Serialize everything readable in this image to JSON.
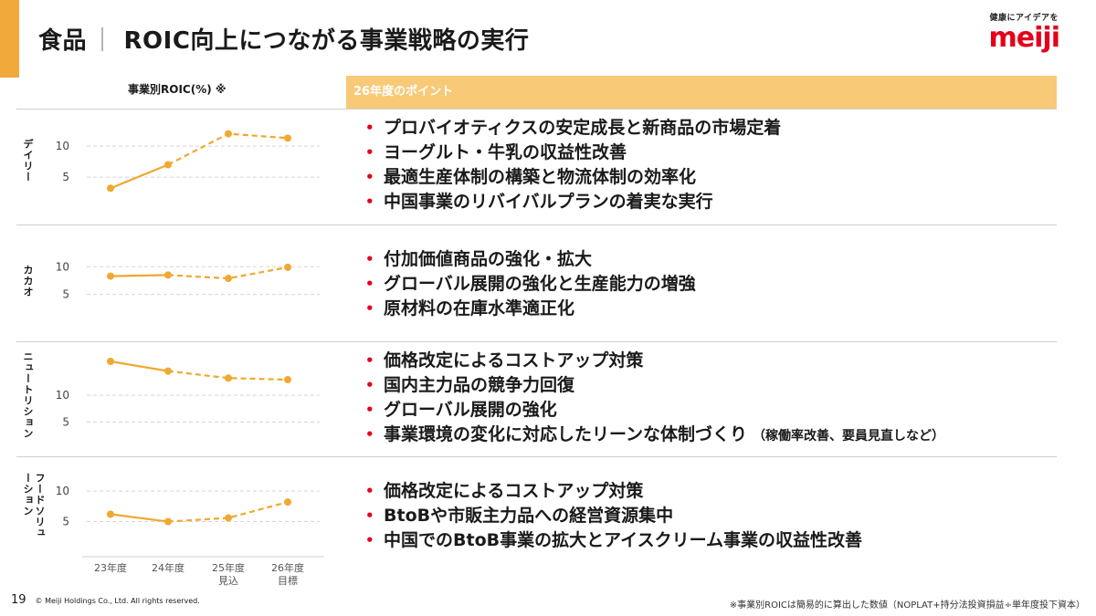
{
  "page": {
    "title_segment": "食品",
    "title_separator": "｜",
    "title_main": "ROIC向上につながる事業戦略の実行",
    "brand_tagline": "健康にアイデアを",
    "brand_logo": "meiji",
    "left_header": "事業別ROIC(%) ※",
    "right_header": "26年度のポイント"
  },
  "segments": [
    {
      "label": "デイリー",
      "bullets": [
        {
          "text": "プロバイオティクスの安定成長と新商品の市場定着"
        },
        {
          "text": "ヨーグルト・牛乳の収益性改善"
        },
        {
          "text": "最適生産体制の構築と物流体制の効率化"
        },
        {
          "text": "中国事業のリバイバルプランの着実な実行"
        }
      ]
    },
    {
      "label": "カカオ",
      "bullets": [
        {
          "text": "付加価値商品の強化・拡大"
        },
        {
          "text": "グローバル展開の強化と生産能力の増強"
        },
        {
          "text": "原材料の在庫水準適正化"
        }
      ]
    },
    {
      "label": "ニュートリション",
      "bullets": [
        {
          "text": "価格改定によるコストアップ対策"
        },
        {
          "text": "国内主力品の競争力回復"
        },
        {
          "text": "グローバル展開の強化"
        },
        {
          "text": "事業環境の変化に対応したリーンな体制づくり",
          "note": "（稼働率改善、要員見直しなど）"
        }
      ]
    },
    {
      "label": "フードソリューション",
      "bullets": [
        {
          "text": "価格改定によるコストアップ対策"
        },
        {
          "text": "BtoBや市販主力品への経営資源集中"
        },
        {
          "text": "中国でのBtoB事業の拡大とアイスクリーム事業の収益性改善"
        }
      ]
    }
  ],
  "chart_data": [
    {
      "type": "line",
      "title": "デイリー",
      "categories": [
        "23年度",
        "24年度",
        "25年度 見込",
        "26年度 目標"
      ],
      "values": [
        3.2,
        7.0,
        12.0,
        11.3
      ],
      "yticks": [
        10,
        5
      ],
      "ylim": [
        0,
        14
      ],
      "style": "solid for actuals, dashed for forecast/target"
    },
    {
      "type": "line",
      "title": "カカオ",
      "categories": [
        "23年度",
        "24年度",
        "25年度 見込",
        "26年度 目標"
      ],
      "values": [
        8.3,
        8.5,
        7.9,
        9.9
      ],
      "yticks": [
        10,
        5
      ],
      "ylim": [
        0,
        14
      ],
      "style": "solid for actuals, dashed for forecast/target"
    },
    {
      "type": "line",
      "title": "ニュートリション",
      "categories": [
        "23年度",
        "24年度",
        "25年度 見込",
        "26年度 目標"
      ],
      "values": [
        16.3,
        14.5,
        13.2,
        12.9
      ],
      "yticks": [
        10,
        5
      ],
      "ylim": [
        0,
        18
      ],
      "style": "solid for actuals, dashed for forecast/target"
    },
    {
      "type": "line",
      "title": "フードソリューション",
      "categories": [
        "23年度",
        "24年度",
        "25年度 見込",
        "26年度 目標"
      ],
      "values": [
        6.2,
        5.0,
        5.6,
        8.2
      ],
      "yticks": [
        10,
        5
      ],
      "ylim": [
        0,
        13
      ],
      "style": "solid for actuals, dashed for forecast/target"
    }
  ],
  "x_axis_labels": [
    {
      "line1": "23年度",
      "line2": ""
    },
    {
      "line1": "24年度",
      "line2": ""
    },
    {
      "line1": "25年度",
      "line2": "見込"
    },
    {
      "line1": "26年度",
      "line2": "目標"
    }
  ],
  "colors": {
    "accent": "#f2a93b",
    "line": "#f0a830",
    "header_fill": "#f8c977",
    "bullet": "#e4001b",
    "brand": "#e4001b"
  },
  "footer": {
    "page_number": "19",
    "copyright": "© Meiji Holdings Co., Ltd. All rights reserved.",
    "note": "※事業別ROICは簡易的に算出した数値（NOPLAT+持分法投資損益÷単年度投下資本）"
  }
}
